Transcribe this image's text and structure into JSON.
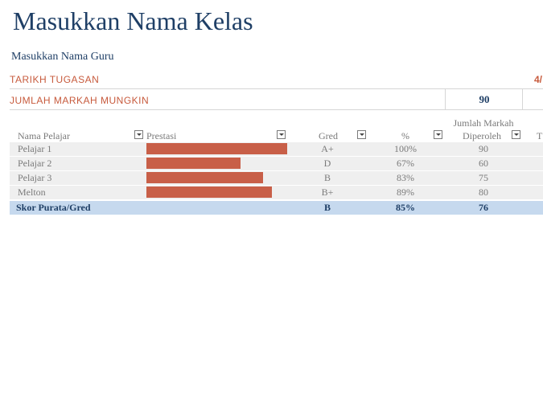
{
  "title": "Masukkan Nama Kelas",
  "teacher": "Masukkan Nama Guru",
  "assignment_date_label": "TARIKH TUGASAN",
  "assignment_date_value": "4/",
  "max_marks_label": "JUMLAH MARKAH MUNGKIN",
  "max_marks_value": "90",
  "table": {
    "headers": {
      "student": "Nama Pelajar",
      "performance": "Prestasi",
      "grade": "Gred",
      "percent": "%",
      "marks_line1": "Jumlah Markah",
      "marks_line2": "Diperoleh",
      "truncated": "T"
    },
    "rows": [
      {
        "name": "Pelajar 1",
        "performance": 1.0,
        "grade": "A+",
        "percent": "100%",
        "marks": "90"
      },
      {
        "name": "Pelajar 2",
        "performance": 0.67,
        "grade": "D",
        "percent": "67%",
        "marks": "60"
      },
      {
        "name": "Pelajar 3",
        "performance": 0.83,
        "grade": "B",
        "percent": "83%",
        "marks": "75"
      },
      {
        "name": "Melton",
        "performance": 0.89,
        "grade": "B+",
        "percent": "89%",
        "marks": "80"
      }
    ],
    "summary": {
      "label": "Skor Purata/Gred",
      "grade": "B",
      "percent": "85%",
      "marks": "76"
    }
  },
  "colors": {
    "title": "#1f3f66",
    "accent_red": "#c75a3c",
    "bar": "#c85f48",
    "summary_bg": "#c6d9ee",
    "row_bg": "#efefef"
  }
}
